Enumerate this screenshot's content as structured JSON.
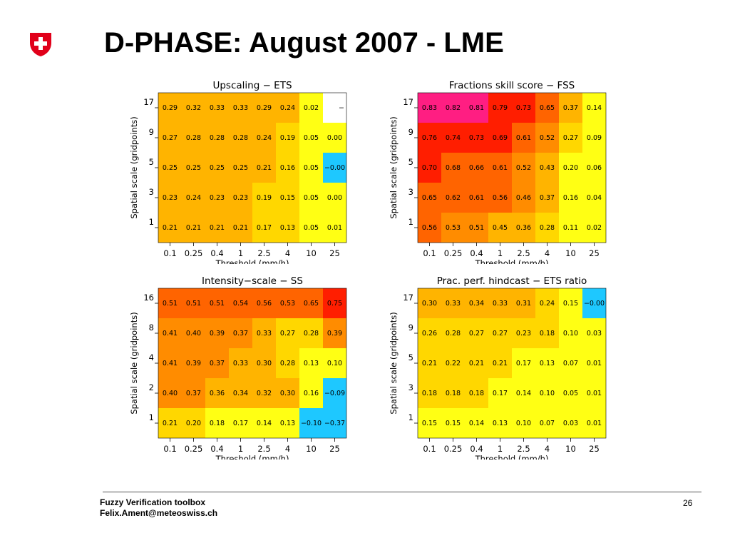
{
  "page": {
    "title": "D-PHASE: August 2007 - LME",
    "footer_line1": "Fuzzy Verification toolbox",
    "footer_line2": "Felix.Ament@meteoswiss.ch",
    "page_number": "26"
  },
  "colors": {
    "cyan": "#1EC8FF",
    "yellow": "#FFFF14",
    "gold": "#FFD700",
    "amber": "#FFB400",
    "orange": "#FF8C00",
    "dark_orange": "#FF6400",
    "red": "#FF1E00",
    "magenta": "#FF1E82"
  },
  "chart_data": [
    {
      "type": "heatmap",
      "title": "Upscaling − ETS",
      "xlabel": "Threshold (mm/h)",
      "ylabel": "Spatial scale (gridpoints)",
      "x": [
        "0.1",
        "0.25",
        "0.4",
        "1",
        "2.5",
        "4",
        "10",
        "25"
      ],
      "y": [
        "17",
        "9",
        "5",
        "3",
        "1"
      ],
      "values": [
        [
          "0.29",
          "0.32",
          "0.33",
          "0.33",
          "0.29",
          "0.24",
          "0.02",
          "−"
        ],
        [
          "0.27",
          "0.28",
          "0.28",
          "0.28",
          "0.24",
          "0.19",
          "0.05",
          "0.00"
        ],
        [
          "0.25",
          "0.25",
          "0.25",
          "0.25",
          "0.21",
          "0.16",
          "0.05",
          "−0.00"
        ],
        [
          "0.23",
          "0.24",
          "0.23",
          "0.23",
          "0.19",
          "0.15",
          "0.05",
          "0.00"
        ],
        [
          "0.21",
          "0.21",
          "0.21",
          "0.21",
          "0.17",
          "0.13",
          "0.05",
          "0.01"
        ]
      ]
    },
    {
      "type": "heatmap",
      "title": "Fractions skill score − FSS",
      "xlabel": "Threshold (mm/h)",
      "ylabel": "Spatial scale (gridpoints)",
      "x": [
        "0.1",
        "0.25",
        "0.4",
        "1",
        "2.5",
        "4",
        "10",
        "25"
      ],
      "y": [
        "17",
        "9",
        "5",
        "3",
        "1"
      ],
      "values": [
        [
          "0.83",
          "0.82",
          "0.81",
          "0.79",
          "0.73",
          "0.65",
          "0.37",
          "0.14"
        ],
        [
          "0.76",
          "0.74",
          "0.73",
          "0.69",
          "0.61",
          "0.52",
          "0.27",
          "0.09"
        ],
        [
          "0.70",
          "0.68",
          "0.66",
          "0.61",
          "0.52",
          "0.43",
          "0.20",
          "0.06"
        ],
        [
          "0.65",
          "0.62",
          "0.61",
          "0.56",
          "0.46",
          "0.37",
          "0.16",
          "0.04"
        ],
        [
          "0.56",
          "0.53",
          "0.51",
          "0.45",
          "0.36",
          "0.28",
          "0.11",
          "0.02"
        ]
      ]
    },
    {
      "type": "heatmap",
      "title": "Intensity−scale − SS",
      "xlabel": "Threshold (mm/h)",
      "ylabel": "Spatial scale (gridpoints)",
      "x": [
        "0.1",
        "0.25",
        "0.4",
        "1",
        "2.5",
        "4",
        "10",
        "25"
      ],
      "y": [
        "16",
        "8",
        "4",
        "2",
        "1"
      ],
      "values": [
        [
          "0.51",
          "0.51",
          "0.51",
          "0.54",
          "0.56",
          "0.53",
          "0.65",
          "0.75"
        ],
        [
          "0.41",
          "0.40",
          "0.39",
          "0.37",
          "0.33",
          "0.27",
          "0.28",
          "0.39"
        ],
        [
          "0.41",
          "0.39",
          "0.37",
          "0.33",
          "0.30",
          "0.28",
          "0.13",
          "0.10"
        ],
        [
          "0.40",
          "0.37",
          "0.36",
          "0.34",
          "0.32",
          "0.30",
          "0.16",
          "−0.09"
        ],
        [
          "0.21",
          "0.20",
          "0.18",
          "0.17",
          "0.14",
          "0.13",
          "−0.10",
          "−0.37"
        ]
      ]
    },
    {
      "type": "heatmap",
      "title": "Prac. perf. hindcast − ETS ratio",
      "xlabel": "Threshold (mm/h)",
      "ylabel": "Spatial scale (gridpoints)",
      "x": [
        "0.1",
        "0.25",
        "0.4",
        "1",
        "2.5",
        "4",
        "10",
        "25"
      ],
      "y": [
        "17",
        "9",
        "5",
        "3",
        "1"
      ],
      "values": [
        [
          "0.30",
          "0.33",
          "0.34",
          "0.33",
          "0.31",
          "0.24",
          "0.15",
          "−0.00"
        ],
        [
          "0.26",
          "0.28",
          "0.27",
          "0.27",
          "0.23",
          "0.18",
          "0.10",
          "0.03"
        ],
        [
          "0.21",
          "0.22",
          "0.21",
          "0.21",
          "0.17",
          "0.13",
          "0.07",
          "0.01"
        ],
        [
          "0.18",
          "0.18",
          "0.18",
          "0.17",
          "0.14",
          "0.10",
          "0.05",
          "0.01"
        ],
        [
          "0.15",
          "0.15",
          "0.14",
          "0.13",
          "0.10",
          "0.07",
          "0.03",
          "0.01"
        ]
      ]
    }
  ]
}
